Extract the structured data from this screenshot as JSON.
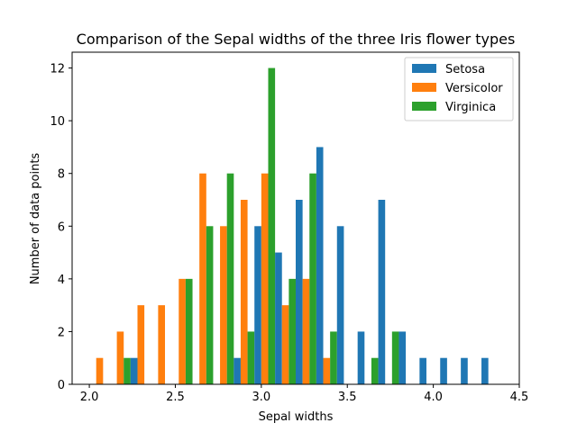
{
  "chart_data": {
    "type": "bar",
    "title": "Comparison of the Sepal widths of the three Iris flower types",
    "xlabel": "Sepal widths",
    "ylabel": "Number of data points",
    "xlim": [
      1.9,
      4.5
    ],
    "ylim": [
      0,
      12.6
    ],
    "x_ticks": [
      2.0,
      2.5,
      3.0,
      3.5,
      4.0,
      4.5
    ],
    "x_tick_labels": [
      "2.0",
      "2.5",
      "3.0",
      "3.5",
      "4.0",
      "4.5"
    ],
    "y_ticks": [
      0,
      2,
      4,
      6,
      8,
      10,
      12
    ],
    "y_tick_labels": [
      "0",
      "2",
      "4",
      "6",
      "8",
      "10",
      "12"
    ],
    "grid": false,
    "legend": "top-right",
    "bins": [
      [
        2.0,
        2.12
      ],
      [
        2.12,
        2.24
      ],
      [
        2.24,
        2.36
      ],
      [
        2.36,
        2.48
      ],
      [
        2.48,
        2.6
      ],
      [
        2.6,
        2.72
      ],
      [
        2.72,
        2.84
      ],
      [
        2.84,
        2.96
      ],
      [
        2.96,
        3.08
      ],
      [
        3.08,
        3.2
      ],
      [
        3.2,
        3.32
      ],
      [
        3.32,
        3.44
      ],
      [
        3.44,
        3.56
      ],
      [
        3.56,
        3.68
      ],
      [
        3.68,
        3.8
      ],
      [
        3.8,
        3.92
      ],
      [
        3.92,
        4.04
      ],
      [
        4.04,
        4.16
      ],
      [
        4.16,
        4.28
      ],
      [
        4.28,
        4.4
      ]
    ],
    "series": [
      {
        "name": "Setosa",
        "color": "#1f77b4",
        "values": [
          0,
          0,
          1,
          0,
          0,
          0,
          0,
          1,
          6,
          5,
          7,
          9,
          6,
          2,
          7,
          2,
          1,
          1,
          1,
          1
        ]
      },
      {
        "name": "Versicolor",
        "color": "#ff7f0e",
        "values": [
          1,
          2,
          3,
          3,
          4,
          8,
          6,
          7,
          8,
          3,
          4,
          1,
          0,
          0,
          0,
          0,
          0,
          0,
          0,
          0
        ]
      },
      {
        "name": "Virginica",
        "color": "#2ca02c",
        "values": [
          0,
          1,
          0,
          0,
          4,
          6,
          8,
          2,
          12,
          4,
          8,
          2,
          0,
          1,
          2,
          0,
          0,
          0,
          0,
          0
        ]
      }
    ]
  }
}
